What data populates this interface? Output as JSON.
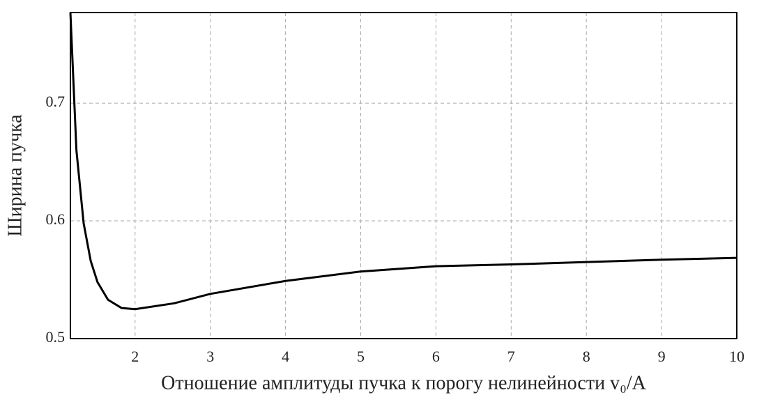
{
  "chart_data": {
    "type": "line",
    "xlabel": "Отношение амплитуды пучка к порогу нелинейности v₀/A",
    "ylabel": "Ширина пучка",
    "x": [
      1.14,
      1.22,
      1.316,
      1.41,
      1.5,
      1.64,
      1.82,
      2.0,
      2.52,
      3,
      4,
      5,
      6,
      7,
      8,
      9,
      10
    ],
    "series": [
      {
        "color": "#000000",
        "values": [
          0.777,
          0.66,
          0.598,
          0.566,
          0.548,
          0.533,
          0.526,
          0.525,
          0.53,
          0.538,
          0.549,
          0.557,
          0.5615,
          0.563,
          0.565,
          0.567,
          0.5686
        ]
      }
    ],
    "xlim": [
      1.14,
      10
    ],
    "ylim": [
      0.5,
      0.777
    ],
    "xticks": [
      2,
      3,
      4,
      5,
      6,
      7,
      8,
      9,
      10
    ],
    "yticks": [
      0.5,
      0.6,
      0.7
    ],
    "grid": true
  }
}
